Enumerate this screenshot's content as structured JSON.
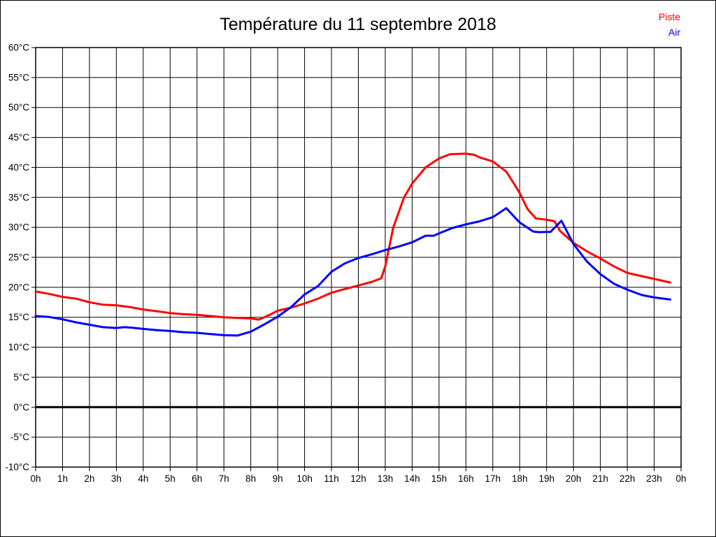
{
  "title": "Température du 11 septembre 2018",
  "legend": [
    {
      "label": "Piste",
      "color": "#ff0000"
    },
    {
      "label": "Air",
      "color": "#0000ff"
    }
  ],
  "colors": {
    "grid": "#000000",
    "zero_line": "#000000",
    "background": "#ffffff",
    "piste": "#ff0000",
    "air": "#0000ff"
  },
  "chart_data": {
    "type": "line",
    "title": "Température du 11 septembre 2018",
    "xlabel": "",
    "ylabel": "",
    "xlim": [
      0,
      24
    ],
    "ylim": [
      -10,
      60
    ],
    "y_step": 5,
    "grid": true,
    "zero_line_bold": true,
    "legend_position": "top-right",
    "x_tick_labels": [
      "0h",
      "1h",
      "2h",
      "3h",
      "4h",
      "5h",
      "6h",
      "7h",
      "8h",
      "9h",
      "10h",
      "11h",
      "12h",
      "13h",
      "14h",
      "15h",
      "16h",
      "17h",
      "18h",
      "19h",
      "20h",
      "21h",
      "22h",
      "23h",
      "0h"
    ],
    "y_tick_labels": [
      "60°C",
      "55°C",
      "50°C",
      "45°C",
      "40°C",
      "35°C",
      "30°C",
      "25°C",
      "20°C",
      "15°C",
      "10°C",
      "5°C",
      "0°C",
      "-5°C",
      "-10°C"
    ],
    "series": [
      {
        "name": "Piste",
        "color": "#ff0000",
        "points": [
          [
            0,
            19.3
          ],
          [
            0.5,
            18.9
          ],
          [
            1,
            18.4
          ],
          [
            1.5,
            18.1
          ],
          [
            2,
            17.5
          ],
          [
            2.5,
            17.1
          ],
          [
            3,
            17
          ],
          [
            3.5,
            16.7
          ],
          [
            4,
            16.3
          ],
          [
            4.5,
            16
          ],
          [
            5,
            15.7
          ],
          [
            5.5,
            15.5
          ],
          [
            6,
            15.4
          ],
          [
            6.5,
            15.2
          ],
          [
            7,
            15
          ],
          [
            7.5,
            14.9
          ],
          [
            8,
            14.8
          ],
          [
            8.3,
            14.6
          ],
          [
            8.7,
            15.4
          ],
          [
            9,
            16.1
          ],
          [
            9.5,
            16.6
          ],
          [
            10,
            17.3
          ],
          [
            10.5,
            18.1
          ],
          [
            11,
            19.1
          ],
          [
            11.5,
            19.7
          ],
          [
            12,
            20.3
          ],
          [
            12.5,
            20.9
          ],
          [
            12.85,
            21.5
          ],
          [
            13,
            23.5
          ],
          [
            13.3,
            30
          ],
          [
            13.7,
            35
          ],
          [
            14,
            37.3
          ],
          [
            14.5,
            40
          ],
          [
            15,
            41.5
          ],
          [
            15.4,
            42.2
          ],
          [
            16,
            42.3
          ],
          [
            16.3,
            42.1
          ],
          [
            16.5,
            41.7
          ],
          [
            17,
            41
          ],
          [
            17.5,
            39.3
          ],
          [
            17.8,
            37.2
          ],
          [
            18,
            35.7
          ],
          [
            18.3,
            33
          ],
          [
            18.6,
            31.5
          ],
          [
            19.1,
            31.2
          ],
          [
            19.3,
            31
          ],
          [
            19.5,
            29.4
          ],
          [
            20,
            27.4
          ],
          [
            20.5,
            26
          ],
          [
            21,
            24.8
          ],
          [
            21.5,
            23.5
          ],
          [
            22,
            22.4
          ],
          [
            22.5,
            21.9
          ],
          [
            23,
            21.4
          ],
          [
            23.6,
            20.8
          ]
        ]
      },
      {
        "name": "Air",
        "color": "#0000ff",
        "points": [
          [
            0,
            15.2
          ],
          [
            0.5,
            15.05
          ],
          [
            1,
            14.65
          ],
          [
            1.5,
            14.15
          ],
          [
            2,
            13.75
          ],
          [
            2.5,
            13.35
          ],
          [
            3,
            13.2
          ],
          [
            3.3,
            13.35
          ],
          [
            3.6,
            13.25
          ],
          [
            4,
            13.05
          ],
          [
            4.5,
            12.85
          ],
          [
            5,
            12.7
          ],
          [
            5.5,
            12.5
          ],
          [
            6,
            12.4
          ],
          [
            6.5,
            12.2
          ],
          [
            7,
            12
          ],
          [
            7.5,
            11.95
          ],
          [
            8,
            12.6
          ],
          [
            8.5,
            13.8
          ],
          [
            9,
            15.1
          ],
          [
            9.5,
            16.7
          ],
          [
            10,
            18.8
          ],
          [
            10.5,
            20.2
          ],
          [
            11,
            22.6
          ],
          [
            11.5,
            24
          ],
          [
            12,
            24.9
          ],
          [
            12.5,
            25.5
          ],
          [
            13,
            26.2
          ],
          [
            13.5,
            26.8
          ],
          [
            14,
            27.5
          ],
          [
            14.5,
            28.6
          ],
          [
            14.8,
            28.6
          ],
          [
            15,
            29
          ],
          [
            15.5,
            29.9
          ],
          [
            16,
            30.5
          ],
          [
            16.5,
            31
          ],
          [
            17,
            31.7
          ],
          [
            17.5,
            33.2
          ],
          [
            18,
            30.8
          ],
          [
            18.5,
            29.3
          ],
          [
            18.7,
            29.2
          ],
          [
            19.15,
            29.25
          ],
          [
            19.55,
            31.1
          ],
          [
            20,
            27.2
          ],
          [
            20.5,
            24.3
          ],
          [
            21,
            22.2
          ],
          [
            21.5,
            20.6
          ],
          [
            22,
            19.6
          ],
          [
            22.55,
            18.7
          ],
          [
            23,
            18.3
          ],
          [
            23.6,
            17.95
          ]
        ]
      }
    ]
  }
}
